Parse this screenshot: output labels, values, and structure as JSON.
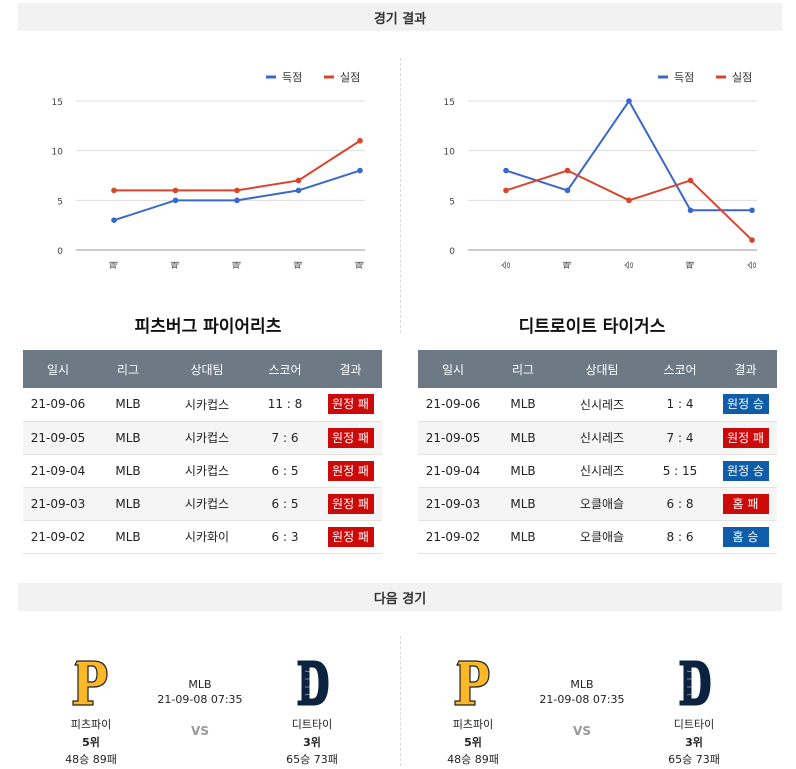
{
  "sections": {
    "results_title": "경기 결과",
    "next_title": "다음 경기"
  },
  "legend": {
    "scored": "득점",
    "conceded": "실점"
  },
  "colors": {
    "scored": "#3a68c9",
    "conceded": "#d8442c",
    "loss": "#cc0a0a",
    "win": "#0f5ca8",
    "header": "#6d7a85"
  },
  "charts": [
    {
      "team": "피츠버그 파이어리츠",
      "chart_data": {
        "type": "line",
        "categories": [
          "패",
          "패",
          "패",
          "패",
          "패"
        ],
        "series": [
          {
            "name": "득점",
            "values": [
              3,
              5,
              5,
              6,
              8
            ]
          },
          {
            "name": "실점",
            "values": [
              6,
              6,
              6,
              7,
              11
            ]
          }
        ],
        "ylim": [
          0,
          15
        ],
        "yticks": [
          "0",
          "5",
          "10",
          "15"
        ],
        "grid": true,
        "legend_position": "top-right"
      }
    },
    {
      "team": "디트로이트 타이거스",
      "chart_data": {
        "type": "line",
        "categories": [
          "승",
          "패",
          "승",
          "패",
          "승"
        ],
        "series": [
          {
            "name": "득점",
            "values": [
              8,
              6,
              15,
              4,
              4
            ]
          },
          {
            "name": "실점",
            "values": [
              6,
              8,
              5,
              7,
              1
            ]
          }
        ],
        "ylim": [
          0,
          15
        ],
        "yticks": [
          "0",
          "5",
          "10",
          "15"
        ],
        "grid": true,
        "legend_position": "top-right"
      }
    }
  ],
  "tables": [
    {
      "headers": [
        "일시",
        "리그",
        "상대팀",
        "스코어",
        "결과"
      ],
      "rows": [
        {
          "date": "21-09-06",
          "league": "MLB",
          "opponent": "시카컵스",
          "score": "11 : 8",
          "result": "원정 패",
          "outcome": "loss"
        },
        {
          "date": "21-09-05",
          "league": "MLB",
          "opponent": "시카컵스",
          "score": "7 : 6",
          "result": "원정 패",
          "outcome": "loss"
        },
        {
          "date": "21-09-04",
          "league": "MLB",
          "opponent": "시카컵스",
          "score": "6 : 5",
          "result": "원정 패",
          "outcome": "loss"
        },
        {
          "date": "21-09-03",
          "league": "MLB",
          "opponent": "시카컵스",
          "score": "6 : 5",
          "result": "원정 패",
          "outcome": "loss"
        },
        {
          "date": "21-09-02",
          "league": "MLB",
          "opponent": "시카화이",
          "score": "6 : 3",
          "result": "원정 패",
          "outcome": "loss"
        }
      ]
    },
    {
      "headers": [
        "일시",
        "리그",
        "상대팀",
        "스코어",
        "결과"
      ],
      "rows": [
        {
          "date": "21-09-06",
          "league": "MLB",
          "opponent": "신시레즈",
          "score": "1 : 4",
          "result": "원정 승",
          "outcome": "win"
        },
        {
          "date": "21-09-05",
          "league": "MLB",
          "opponent": "신시레즈",
          "score": "7 : 4",
          "result": "원정 패",
          "outcome": "loss"
        },
        {
          "date": "21-09-04",
          "league": "MLB",
          "opponent": "신시레즈",
          "score": "5 : 15",
          "result": "원정 승",
          "outcome": "win"
        },
        {
          "date": "21-09-03",
          "league": "MLB",
          "opponent": "오클애슬",
          "score": "6 : 8",
          "result": "홈 패",
          "outcome": "loss"
        },
        {
          "date": "21-09-02",
          "league": "MLB",
          "opponent": "오클애슬",
          "score": "8 : 6",
          "result": "홈 승",
          "outcome": "win"
        }
      ]
    }
  ],
  "next_games": [
    {
      "away": {
        "name": "피츠파이",
        "rank": "5위",
        "record": "48승 89패",
        "logo_letter": "P",
        "logo_icon": "pirates-logo"
      },
      "home": {
        "name": "디트타이",
        "rank": "3위",
        "record": "65승 73패",
        "logo_letter": "D",
        "logo_icon": "tigers-logo"
      },
      "league": "MLB",
      "datetime": "21-09-08 07:35",
      "vs": "VS"
    },
    {
      "away": {
        "name": "피츠파이",
        "rank": "5위",
        "record": "48승 89패",
        "logo_letter": "P",
        "logo_icon": "pirates-logo"
      },
      "home": {
        "name": "디트타이",
        "rank": "3위",
        "record": "65승 73패",
        "logo_letter": "D",
        "logo_icon": "tigers-logo"
      },
      "league": "MLB",
      "datetime": "21-09-08 07:35",
      "vs": "VS"
    }
  ]
}
